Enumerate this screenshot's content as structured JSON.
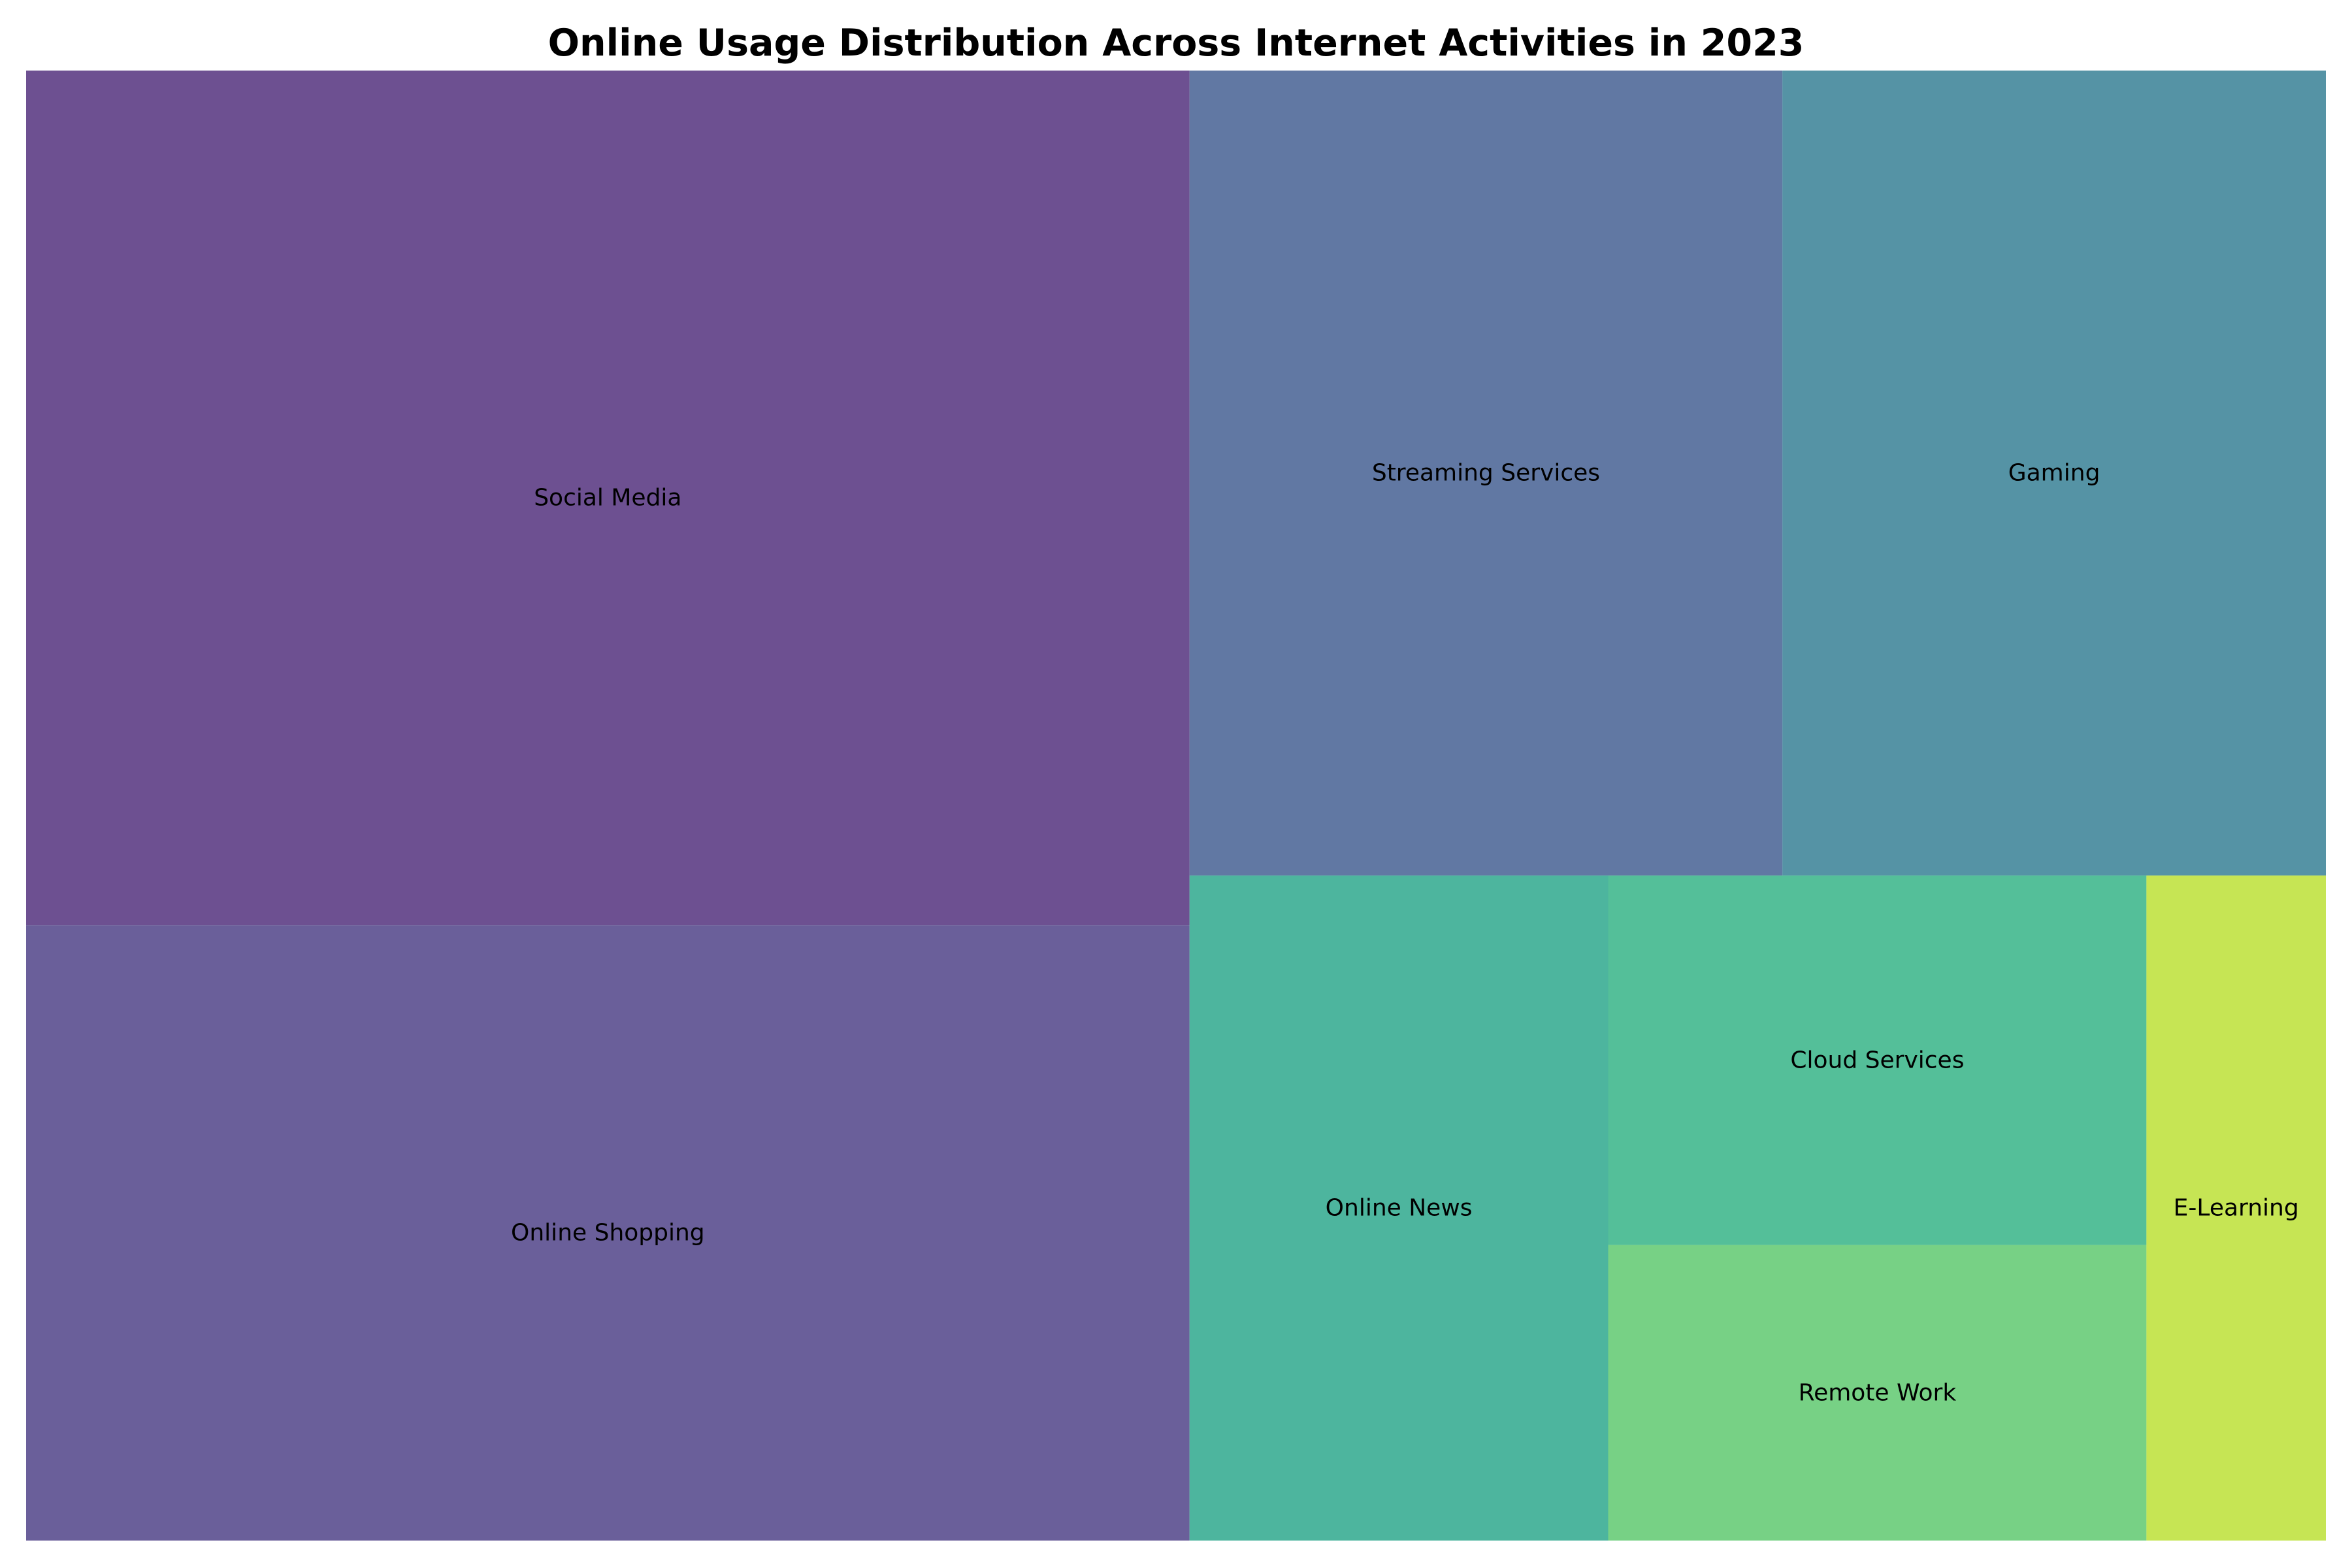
{
  "chart_data": {
    "type": "treemap",
    "title": "Online Usage Distribution Across Internet Activities in 2023",
    "legend": "none",
    "grid": false,
    "categories": [
      "Social Media",
      "Online Shopping",
      "Streaming Services",
      "Gaming",
      "Online News",
      "Cloud Services",
      "Remote Work",
      "E-Learning"
    ],
    "values": [
      25,
      18,
      12,
      11,
      7,
      5,
      4,
      3
    ],
    "colors": [
      "#482475",
      "#453781",
      "#39568c",
      "#2a788e",
      "#20a386",
      "#29af7f",
      "#55c667",
      "#b8de29"
    ]
  }
}
